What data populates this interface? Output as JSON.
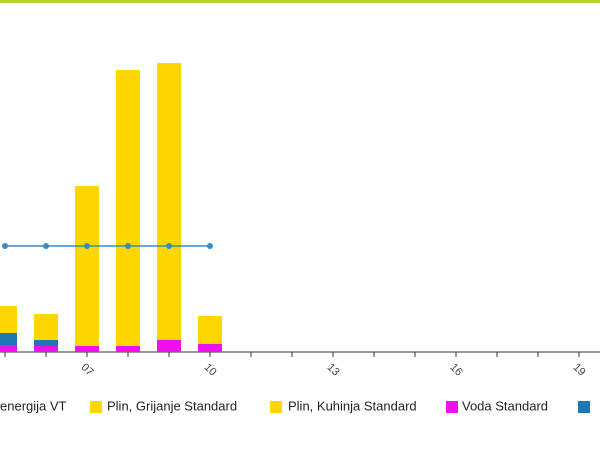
{
  "chart_data": {
    "type": "bar",
    "categories": [
      null,
      null,
      "07",
      null,
      null,
      "10",
      null,
      null,
      "13",
      null,
      null,
      "16",
      null,
      null,
      "19"
    ],
    "ylim": [
      0,
      300
    ],
    "series": [
      {
        "name": "energija VT",
        "type": "line",
        "color": "#3a8ac4",
        "values": [
          106,
          106,
          106,
          106,
          106,
          106,
          null,
          null,
          null,
          null,
          null,
          null,
          null,
          null,
          null
        ]
      },
      {
        "name": "Plin, Grijanje Standard",
        "color": "#ffd700",
        "values": [
          27,
          26,
          160,
          276,
          277,
          28,
          null,
          null,
          null,
          null,
          null,
          null,
          null,
          null,
          null
        ]
      },
      {
        "name": "Plin, Kuhinja Standard",
        "color": "#ffd700",
        "values": [
          0,
          0,
          0,
          0,
          0,
          0,
          null,
          null,
          null,
          null,
          null,
          null,
          null,
          null,
          null
        ]
      },
      {
        "name": "Voda Standard",
        "color": "#ee11ee",
        "values": [
          7,
          6,
          6,
          6,
          12,
          8,
          null,
          null,
          null,
          null,
          null,
          null,
          null,
          null,
          null
        ]
      },
      {
        "color": "#1f77b4",
        "values": [
          12,
          6,
          0,
          0,
          0,
          0,
          null,
          null,
          null,
          null,
          null,
          null,
          null,
          null,
          null
        ]
      }
    ]
  }
}
